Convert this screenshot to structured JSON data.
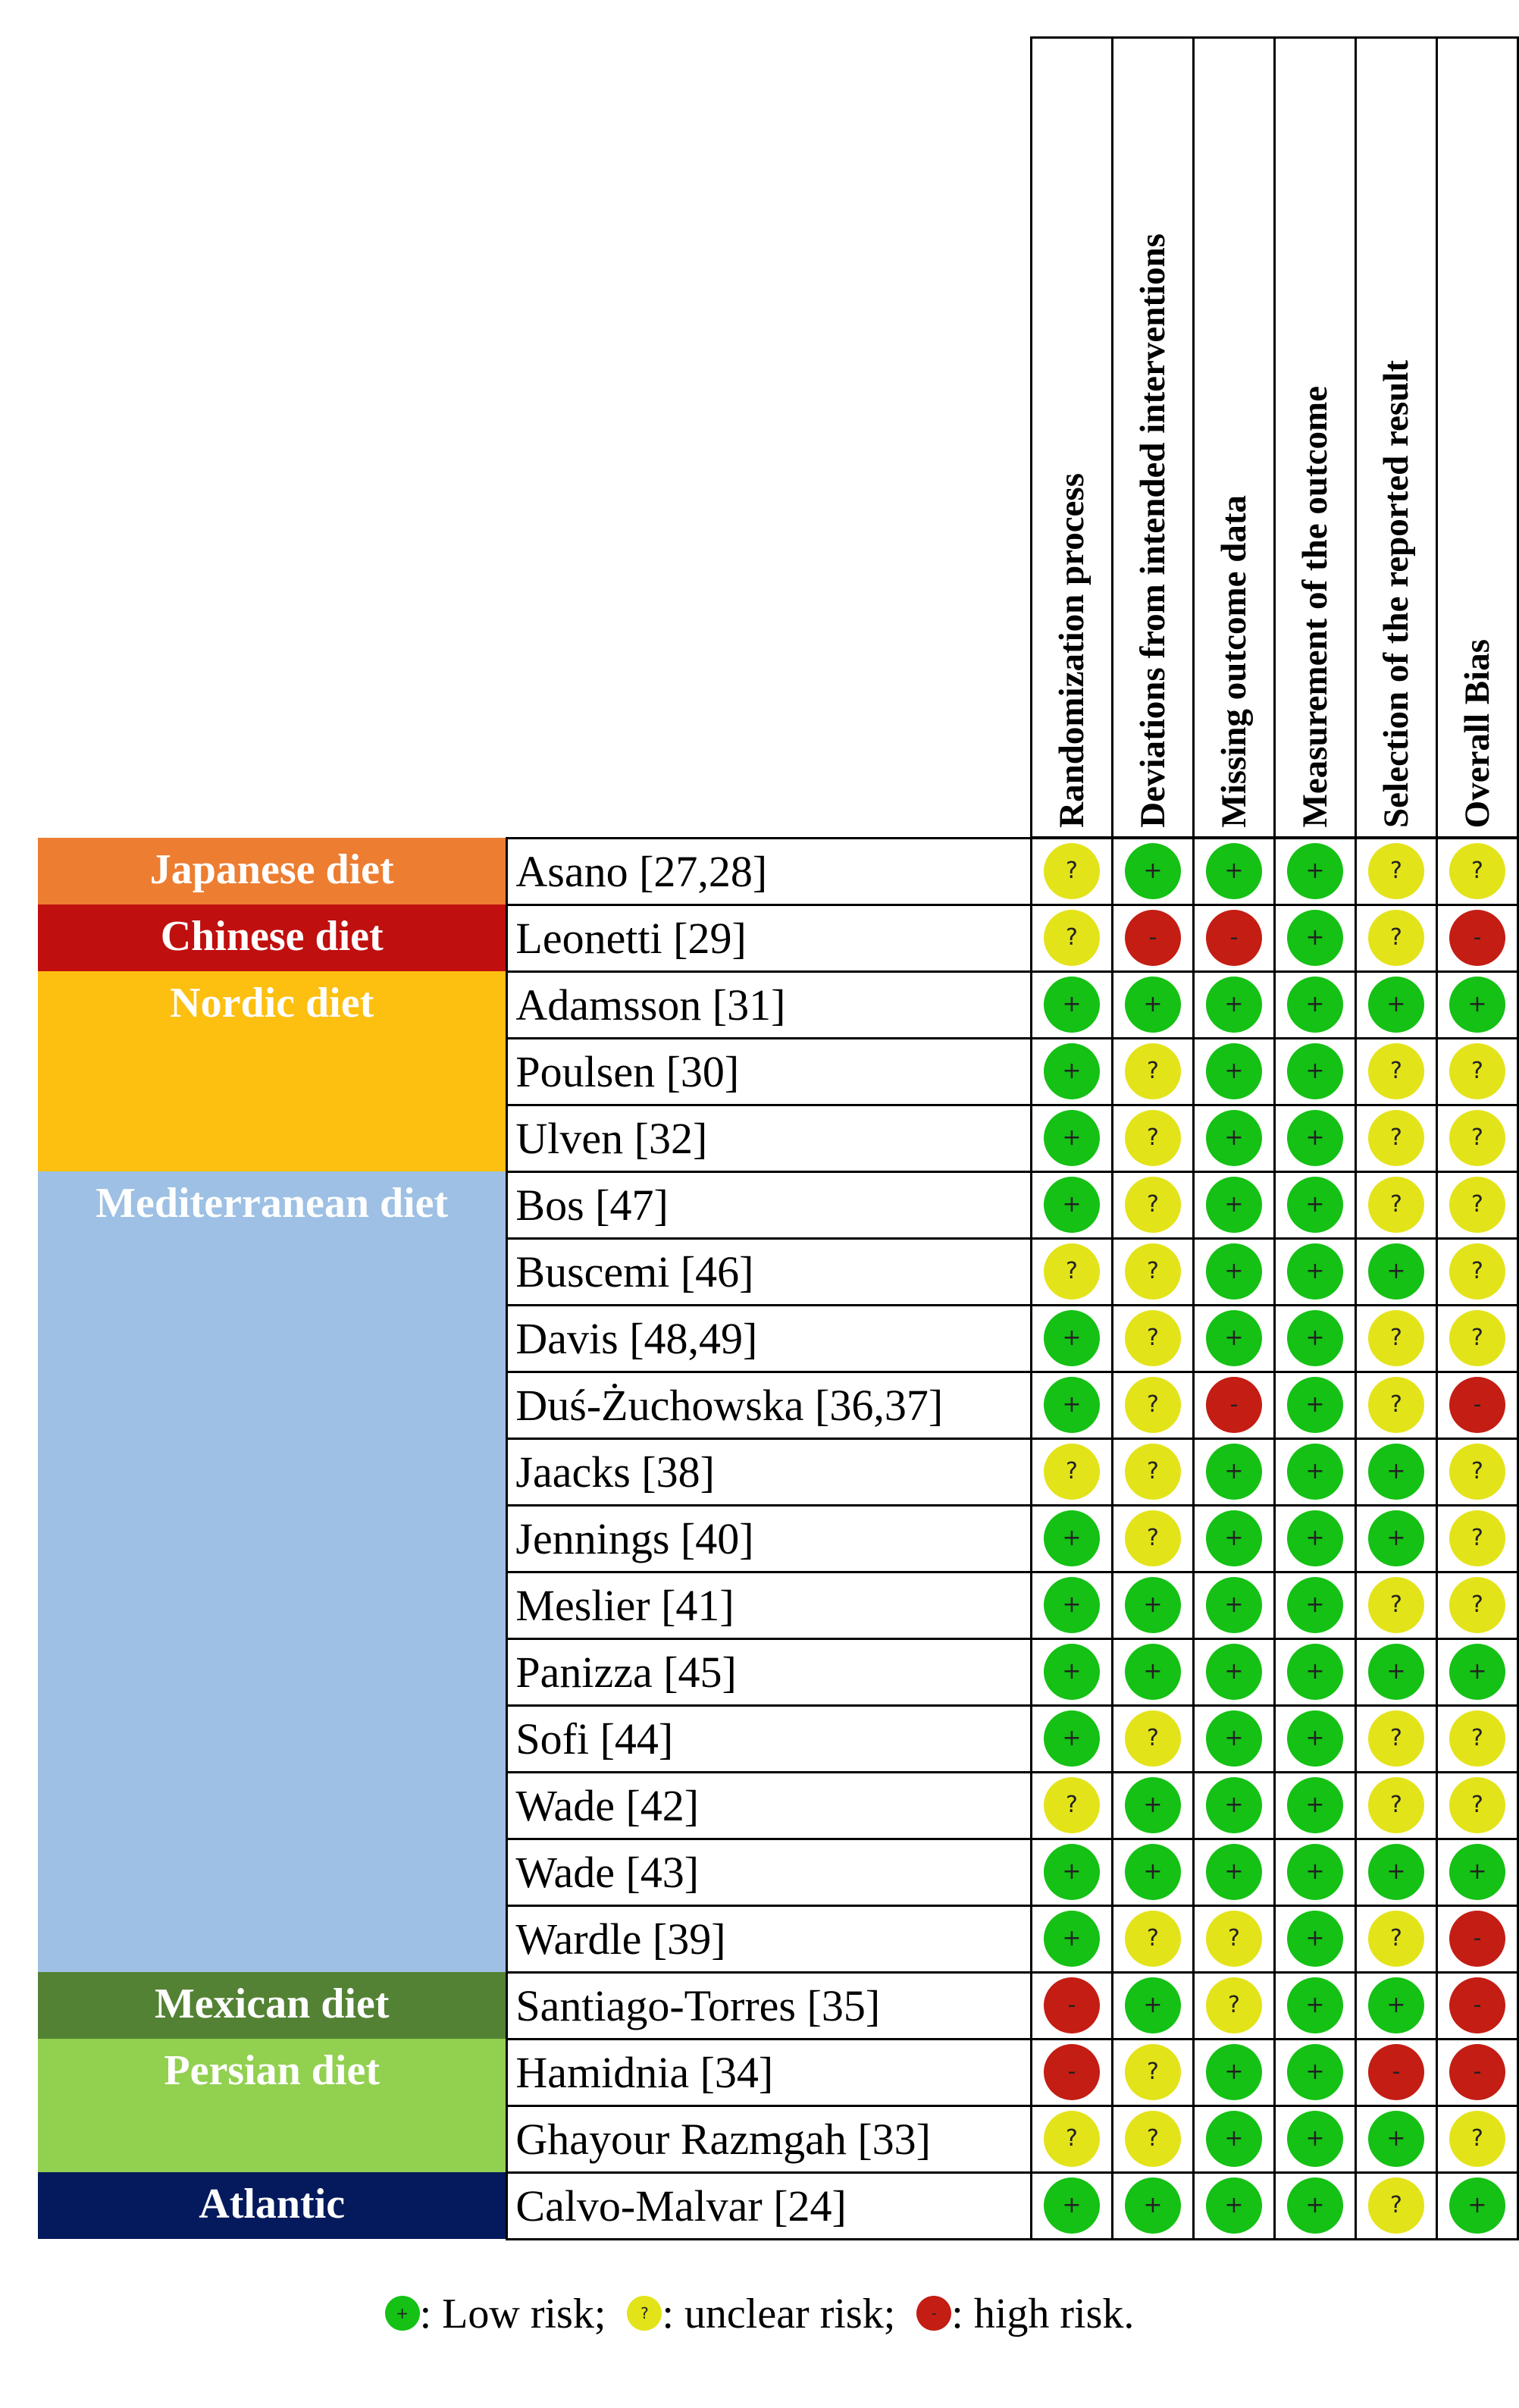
{
  "chart_data": {
    "type": "table",
    "columns": [
      "Randomization process",
      "Deviations from intended interventions",
      "Missing outcome data",
      "Measurement of the outcome",
      "Selection of the reported result",
      "Overall Bias"
    ],
    "symbols": {
      "low": "+",
      "unclear": "?",
      "high": "-"
    },
    "colors": {
      "low": "#14c114",
      "unclear": "#e3e31a",
      "high": "#c31d14"
    },
    "groups": [
      {
        "label": "Japanese diet",
        "color": "#ed7d31",
        "studies": [
          {
            "name": "Asano [27,28]",
            "ratings": [
              "unclear",
              "low",
              "low",
              "low",
              "unclear",
              "unclear"
            ]
          }
        ]
      },
      {
        "label": "Chinese diet",
        "color": "#c00f0f",
        "studies": [
          {
            "name": "Leonetti [29]",
            "ratings": [
              "unclear",
              "high",
              "high",
              "low",
              "unclear",
              "high"
            ]
          }
        ]
      },
      {
        "label": "Nordic diet",
        "color": "#fdbf10",
        "studies": [
          {
            "name": "Adamsson [31]",
            "ratings": [
              "low",
              "low",
              "low",
              "low",
              "low",
              "low"
            ]
          },
          {
            "name": "Poulsen [30]",
            "ratings": [
              "low",
              "unclear",
              "low",
              "low",
              "unclear",
              "unclear"
            ]
          },
          {
            "name": "Ulven [32]",
            "ratings": [
              "low",
              "unclear",
              "low",
              "low",
              "unclear",
              "unclear"
            ]
          }
        ]
      },
      {
        "label": "Mediterranean diet",
        "color": "#9dc0e4",
        "studies": [
          {
            "name": "Bos [47]",
            "ratings": [
              "low",
              "unclear",
              "low",
              "low",
              "unclear",
              "unclear"
            ]
          },
          {
            "name": "Buscemi [46]",
            "ratings": [
              "unclear",
              "unclear",
              "low",
              "low",
              "low",
              "unclear"
            ]
          },
          {
            "name": "Davis [48,49]",
            "ratings": [
              "low",
              "unclear",
              "low",
              "low",
              "unclear",
              "unclear"
            ]
          },
          {
            "name": "Duś-Żuchowska [36,37]",
            "ratings": [
              "low",
              "unclear",
              "high",
              "low",
              "unclear",
              "high"
            ]
          },
          {
            "name": "Jaacks [38]",
            "ratings": [
              "unclear",
              "unclear",
              "low",
              "low",
              "low",
              "unclear"
            ]
          },
          {
            "name": "Jennings [40]",
            "ratings": [
              "low",
              "unclear",
              "low",
              "low",
              "low",
              "unclear"
            ]
          },
          {
            "name": "Meslier [41]",
            "ratings": [
              "low",
              "low",
              "low",
              "low",
              "unclear",
              "unclear"
            ]
          },
          {
            "name": "Panizza [45]",
            "ratings": [
              "low",
              "low",
              "low",
              "low",
              "low",
              "low"
            ]
          },
          {
            "name": "Sofi [44]",
            "ratings": [
              "low",
              "unclear",
              "low",
              "low",
              "unclear",
              "unclear"
            ]
          },
          {
            "name": "Wade [42]",
            "ratings": [
              "unclear",
              "low",
              "low",
              "low",
              "unclear",
              "unclear"
            ]
          },
          {
            "name": "Wade [43]",
            "ratings": [
              "low",
              "low",
              "low",
              "low",
              "low",
              "low"
            ]
          },
          {
            "name": "Wardle [39]",
            "ratings": [
              "low",
              "unclear",
              "unclear",
              "low",
              "unclear",
              "high"
            ]
          }
        ]
      },
      {
        "label": "Mexican diet",
        "color": "#548235",
        "studies": [
          {
            "name": "Santiago-Torres [35]",
            "ratings": [
              "high",
              "low",
              "unclear",
              "low",
              "low",
              "high"
            ]
          }
        ]
      },
      {
        "label": "Persian diet",
        "color": "#92d050",
        "studies": [
          {
            "name": "Hamidnia [34]",
            "ratings": [
              "high",
              "unclear",
              "low",
              "low",
              "high",
              "high"
            ]
          },
          {
            "name": "Ghayour Razmgah [33]",
            "ratings": [
              "unclear",
              "unclear",
              "low",
              "low",
              "low",
              "unclear"
            ]
          }
        ]
      },
      {
        "label": "Atlantic",
        "color": "#041a5c",
        "studies": [
          {
            "name": "Calvo-Malvar [24]",
            "ratings": [
              "low",
              "low",
              "low",
              "low",
              "unclear",
              "low"
            ]
          }
        ]
      }
    ],
    "legend": {
      "low": ": Low risk;",
      "unclear": ": unclear risk;",
      "high": ": high risk."
    }
  }
}
